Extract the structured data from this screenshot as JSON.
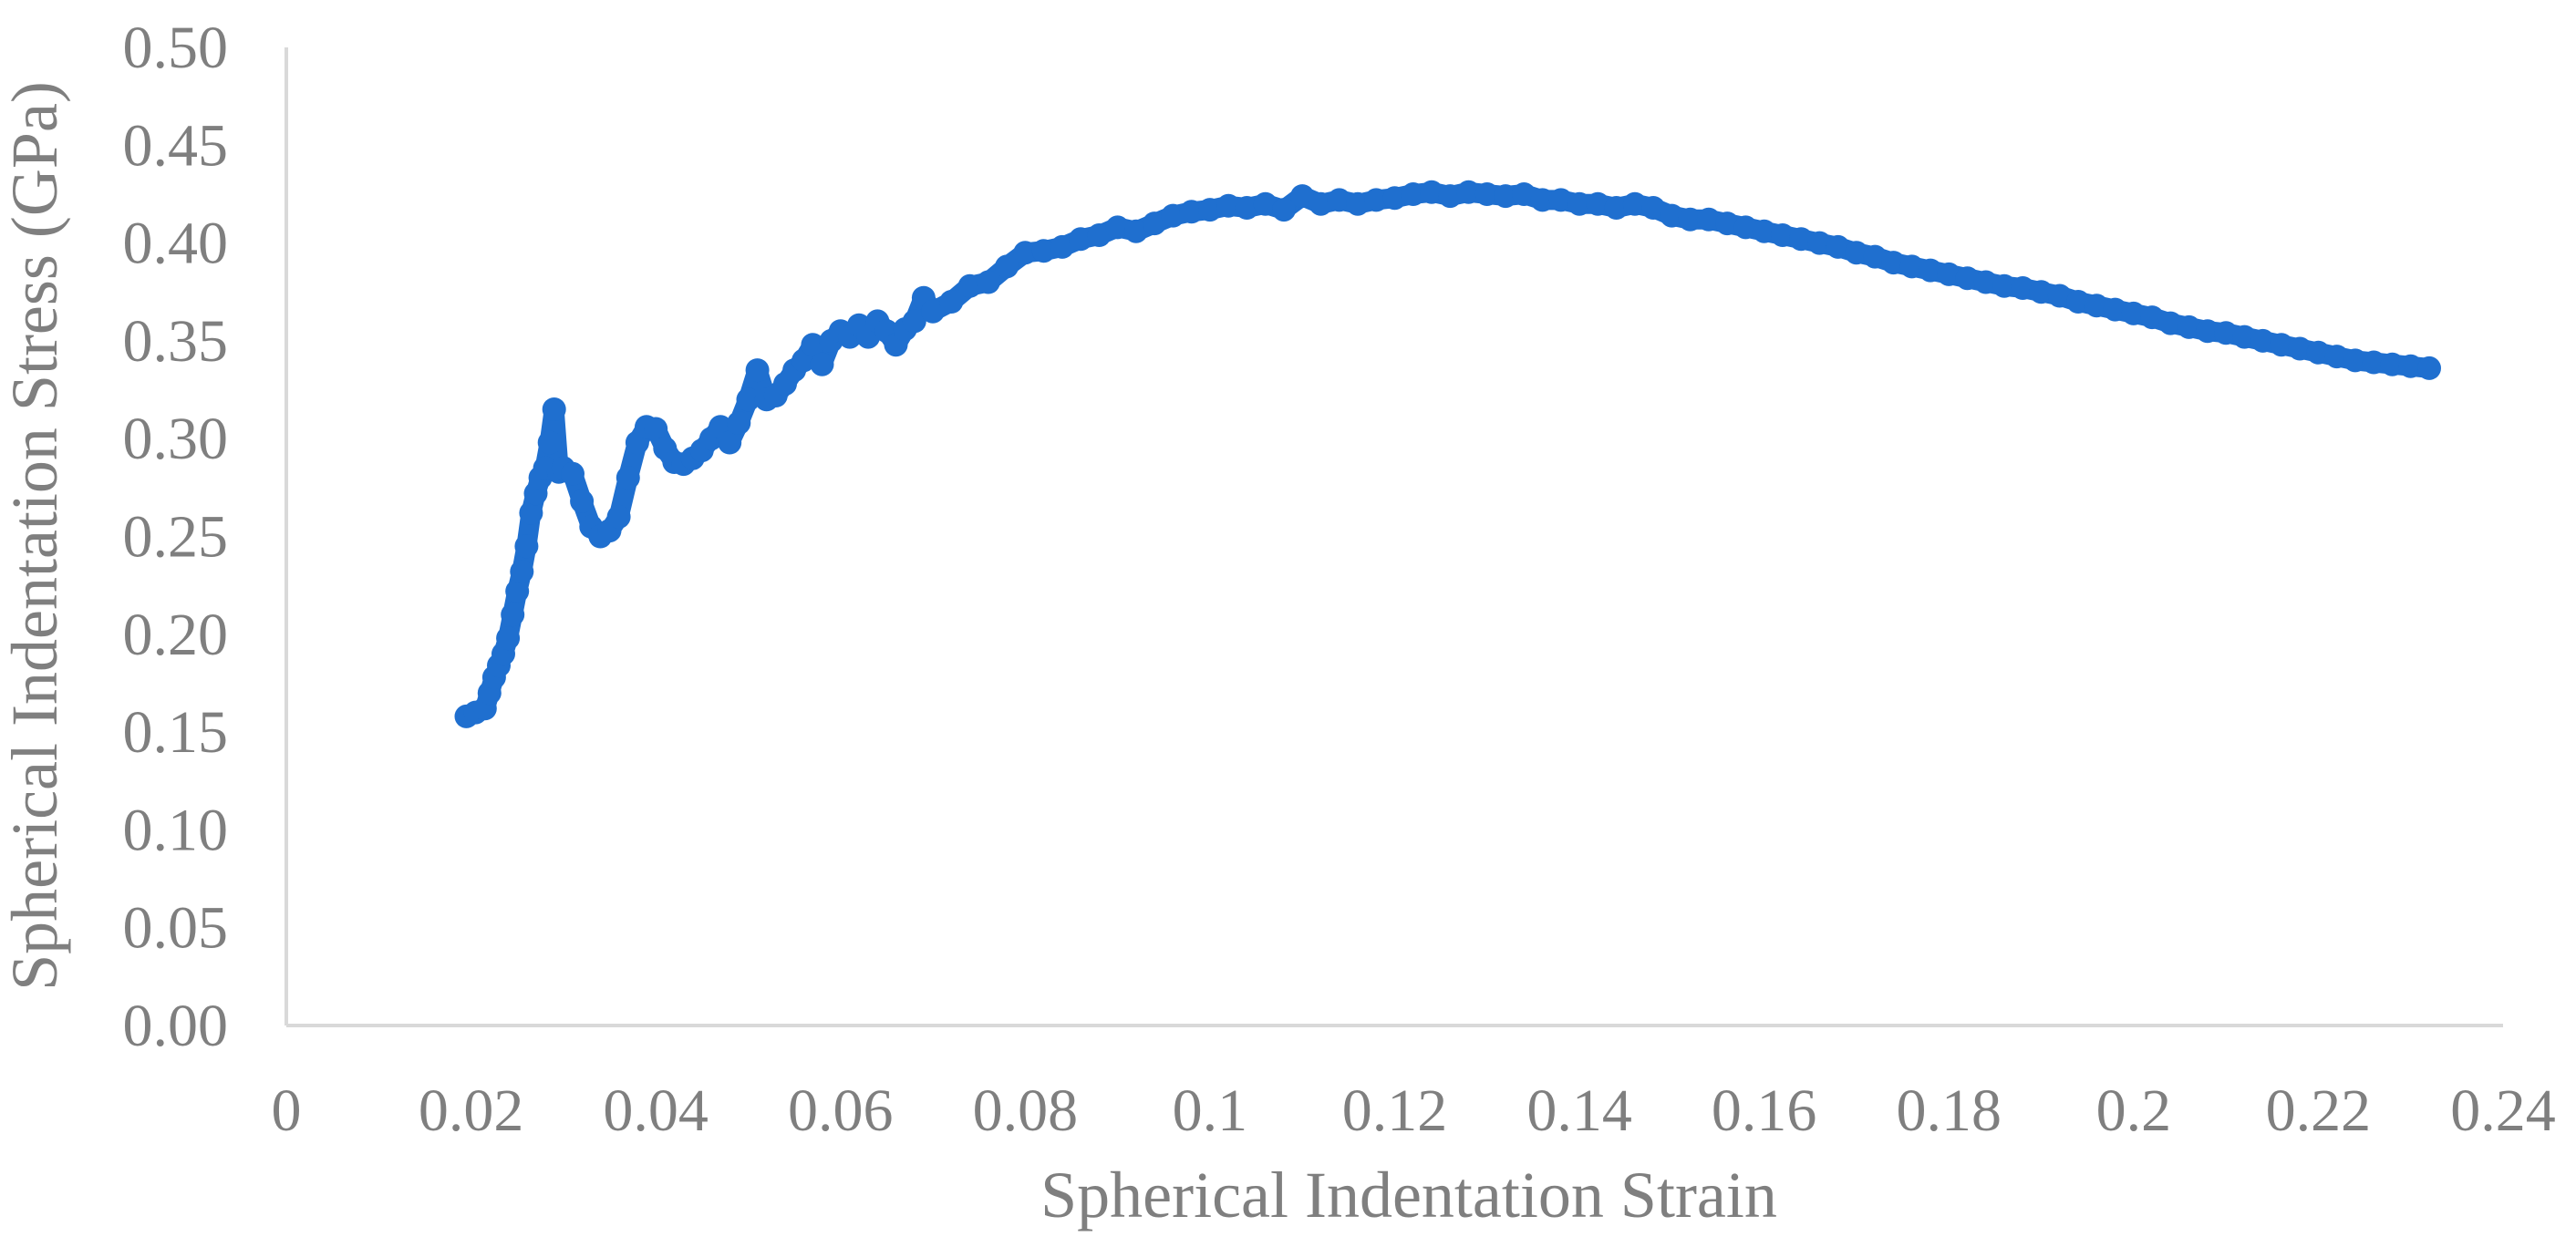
{
  "chart_data": {
    "type": "scatter",
    "title": "",
    "xlabel": "Spherical Indentation Strain",
    "ylabel": "Spherical Indentation Stress (GPa)",
    "xlim": [
      0,
      0.24
    ],
    "ylim": [
      0,
      0.5
    ],
    "x_ticks": [
      "0",
      "0.02",
      "0.04",
      "0.06",
      "0.08",
      "0.1",
      "0.12",
      "0.14",
      "0.16",
      "0.18",
      "0.2",
      "0.22",
      "0.24"
    ],
    "y_ticks": [
      "0.00",
      "0.05",
      "0.10",
      "0.15",
      "0.20",
      "0.25",
      "0.30",
      "0.35",
      "0.40",
      "0.45",
      "0.50"
    ],
    "grid": false,
    "legend": "none",
    "marker_color": "#1f6fcf",
    "series": [
      {
        "x": [
          0.0195,
          0.0205,
          0.0215,
          0.022,
          0.0225,
          0.023,
          0.0235,
          0.024,
          0.0245,
          0.025,
          0.0255,
          0.026,
          0.0265,
          0.027,
          0.0275,
          0.028,
          0.0285,
          0.029,
          0.0295,
          0.03,
          0.031,
          0.032,
          0.033,
          0.034,
          0.035,
          0.036,
          0.037,
          0.038,
          0.039,
          0.04,
          0.041,
          0.042,
          0.043,
          0.044,
          0.045,
          0.046,
          0.047,
          0.048,
          0.049,
          0.05,
          0.051,
          0.052,
          0.053,
          0.054,
          0.055,
          0.056,
          0.057,
          0.058,
          0.059,
          0.06,
          0.061,
          0.062,
          0.063,
          0.064,
          0.065,
          0.066,
          0.067,
          0.068,
          0.069,
          0.07,
          0.072,
          0.074,
          0.076,
          0.078,
          0.08,
          0.082,
          0.084,
          0.086,
          0.088,
          0.09,
          0.092,
          0.094,
          0.096,
          0.098,
          0.1,
          0.102,
          0.104,
          0.106,
          0.108,
          0.11,
          0.112,
          0.114,
          0.116,
          0.118,
          0.12,
          0.122,
          0.124,
          0.126,
          0.128,
          0.13,
          0.132,
          0.134,
          0.136,
          0.138,
          0.14,
          0.142,
          0.144,
          0.146,
          0.148,
          0.15,
          0.152,
          0.154,
          0.156,
          0.158,
          0.16,
          0.162,
          0.164,
          0.166,
          0.168,
          0.17,
          0.172,
          0.174,
          0.176,
          0.178,
          0.18,
          0.182,
          0.184,
          0.186,
          0.188,
          0.19,
          0.192,
          0.194,
          0.196,
          0.198,
          0.2,
          0.202,
          0.204,
          0.206,
          0.208,
          0.21,
          0.212,
          0.214,
          0.216,
          0.218,
          0.22,
          0.222,
          0.224,
          0.226,
          0.228,
          0.23,
          0.232
        ],
        "y": [
          0.158,
          0.16,
          0.162,
          0.17,
          0.178,
          0.184,
          0.19,
          0.198,
          0.21,
          0.222,
          0.232,
          0.245,
          0.262,
          0.272,
          0.28,
          0.285,
          0.298,
          0.315,
          0.283,
          0.285,
          0.282,
          0.268,
          0.255,
          0.25,
          0.253,
          0.26,
          0.28,
          0.298,
          0.306,
          0.305,
          0.295,
          0.288,
          0.287,
          0.29,
          0.294,
          0.3,
          0.306,
          0.298,
          0.308,
          0.32,
          0.335,
          0.32,
          0.322,
          0.328,
          0.335,
          0.34,
          0.348,
          0.338,
          0.35,
          0.355,
          0.352,
          0.358,
          0.352,
          0.36,
          0.355,
          0.348,
          0.356,
          0.36,
          0.372,
          0.365,
          0.37,
          0.378,
          0.38,
          0.388,
          0.395,
          0.396,
          0.398,
          0.402,
          0.404,
          0.408,
          0.406,
          0.41,
          0.414,
          0.416,
          0.417,
          0.419,
          0.418,
          0.42,
          0.417,
          0.424,
          0.42,
          0.422,
          0.42,
          0.422,
          0.423,
          0.425,
          0.426,
          0.424,
          0.426,
          0.425,
          0.424,
          0.425,
          0.422,
          0.422,
          0.42,
          0.42,
          0.418,
          0.42,
          0.418,
          0.414,
          0.412,
          0.412,
          0.41,
          0.408,
          0.406,
          0.404,
          0.402,
          0.4,
          0.398,
          0.395,
          0.393,
          0.39,
          0.388,
          0.386,
          0.384,
          0.382,
          0.38,
          0.378,
          0.377,
          0.375,
          0.373,
          0.37,
          0.368,
          0.366,
          0.364,
          0.362,
          0.359,
          0.357,
          0.355,
          0.354,
          0.352,
          0.35,
          0.348,
          0.346,
          0.344,
          0.342,
          0.34,
          0.339,
          0.338,
          0.337,
          0.336
        ]
      }
    ]
  }
}
